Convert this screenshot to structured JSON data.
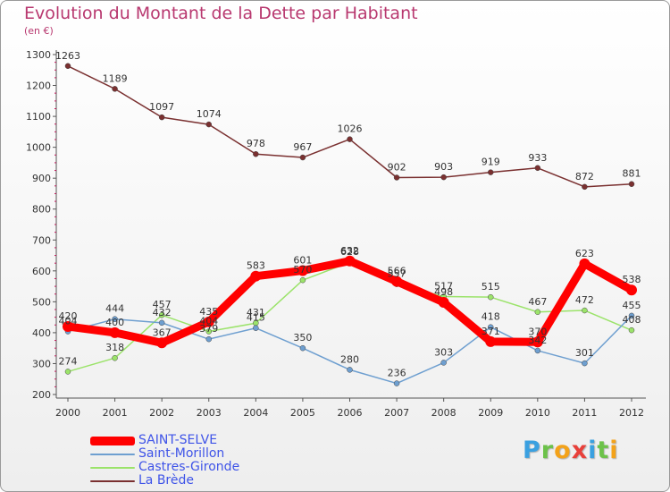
{
  "title": "Evolution du Montant de la Dette par Habitant",
  "unit": "(en €)",
  "chart_data": {
    "type": "line",
    "x": [
      2000,
      2001,
      2002,
      2003,
      2004,
      2005,
      2006,
      2007,
      2008,
      2009,
      2010,
      2011,
      2012
    ],
    "ylim": [
      200,
      1300
    ],
    "yticks": [
      200,
      300,
      400,
      500,
      600,
      700,
      800,
      900,
      1000,
      1100,
      1200,
      1300
    ],
    "grid": false,
    "legend_position": "bottom-left",
    "series": [
      {
        "name": "SAINT-SELVE",
        "color": "#ff0000",
        "width": 9,
        "values": [
          420,
          400,
          367,
          435,
          583,
          601,
          632,
          566,
          498,
          371,
          370,
          623,
          538
        ],
        "labels": [
          "420",
          "400",
          "367",
          "435",
          "583",
          "601",
          "632",
          "566",
          "498",
          "371",
          "370",
          "623",
          "538"
        ]
      },
      {
        "name": "Saint-Morillon",
        "color": "#6e9fd0",
        "width": 1.5,
        "values": [
          404,
          444,
          432,
          379,
          415,
          350,
          280,
          236,
          303,
          418,
          342,
          301,
          455
        ],
        "labels": [
          "404",
          "444",
          "432",
          "379",
          "415",
          "350",
          "280",
          "236",
          "303",
          "418",
          "342",
          "301",
          "455"
        ]
      },
      {
        "name": "Castres-Gironde",
        "color": "#9be36a",
        "width": 1.5,
        "values": [
          274,
          318,
          457,
          404,
          431,
          570,
          628,
          557,
          517,
          515,
          467,
          472,
          408
        ],
        "labels": [
          "274",
          "318",
          "457",
          "404",
          "431",
          "570",
          "628",
          "557",
          "517",
          "515",
          "467",
          "472",
          "408"
        ]
      },
      {
        "name": "La Brède",
        "color": "#7a3030",
        "width": 1.5,
        "values": [
          1263,
          1189,
          1097,
          1074,
          978,
          967,
          1026,
          902,
          903,
          919,
          933,
          872,
          881
        ],
        "labels": [
          "1263",
          "1189",
          "1097",
          "1074",
          "978",
          "967",
          "1026",
          "902",
          "903",
          "919",
          "933",
          "872",
          "881"
        ]
      }
    ]
  },
  "legend": {
    "items": [
      {
        "label": "SAINT-SELVE",
        "color": "#ff0000"
      },
      {
        "label": "Saint-Morillon",
        "color": "#6e9fd0"
      },
      {
        "label": "Castres-Gironde",
        "color": "#9be36a"
      },
      {
        "label": "La Brède",
        "color": "#7a3030"
      }
    ]
  },
  "logo": {
    "letters": [
      "P",
      "r",
      "o",
      "x",
      "i",
      "t",
      "i"
    ],
    "colors": [
      "#3aa0e0",
      "#6cc24a",
      "#f3a21a",
      "#e8403a",
      "#3aa0e0",
      "#6cc24a",
      "#f3a21a"
    ]
  }
}
